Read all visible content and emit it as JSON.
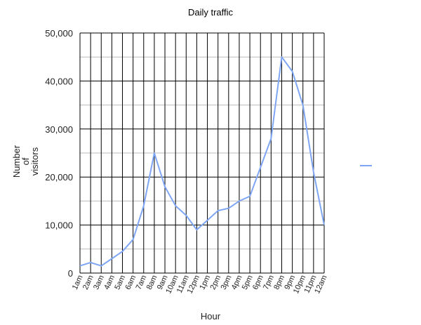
{
  "chart_data": {
    "type": "line",
    "title": "Daily traffic",
    "xlabel": "Hour",
    "ylabel": [
      "Number",
      "of",
      "visitors"
    ],
    "categories": [
      "1am",
      "2am",
      "3am",
      "4am",
      "5am",
      "6am",
      "7am",
      "8am",
      "9am",
      "10am",
      "11am",
      "12pm",
      "1pm",
      "2pm",
      "3pm",
      "4pm",
      "5pm",
      "6pm",
      "7pm",
      "8pm",
      "9pm",
      "10pm",
      "11pm",
      "12am"
    ],
    "series": [
      {
        "values": [
          1500,
          2200,
          1500,
          3000,
          4500,
          7000,
          14000,
          25000,
          18000,
          14000,
          12000,
          9000,
          11000,
          13000,
          13500,
          15000,
          16000,
          22000,
          28000,
          45000,
          42000,
          35000,
          21000,
          10000
        ]
      }
    ],
    "ylim": [
      0,
      50000
    ],
    "yticks": [
      "0",
      "10,000",
      "20,000",
      "30,000",
      "40,000",
      "50,000"
    ],
    "grid": true,
    "legend": "right",
    "line_color": "#7fa6f5"
  }
}
